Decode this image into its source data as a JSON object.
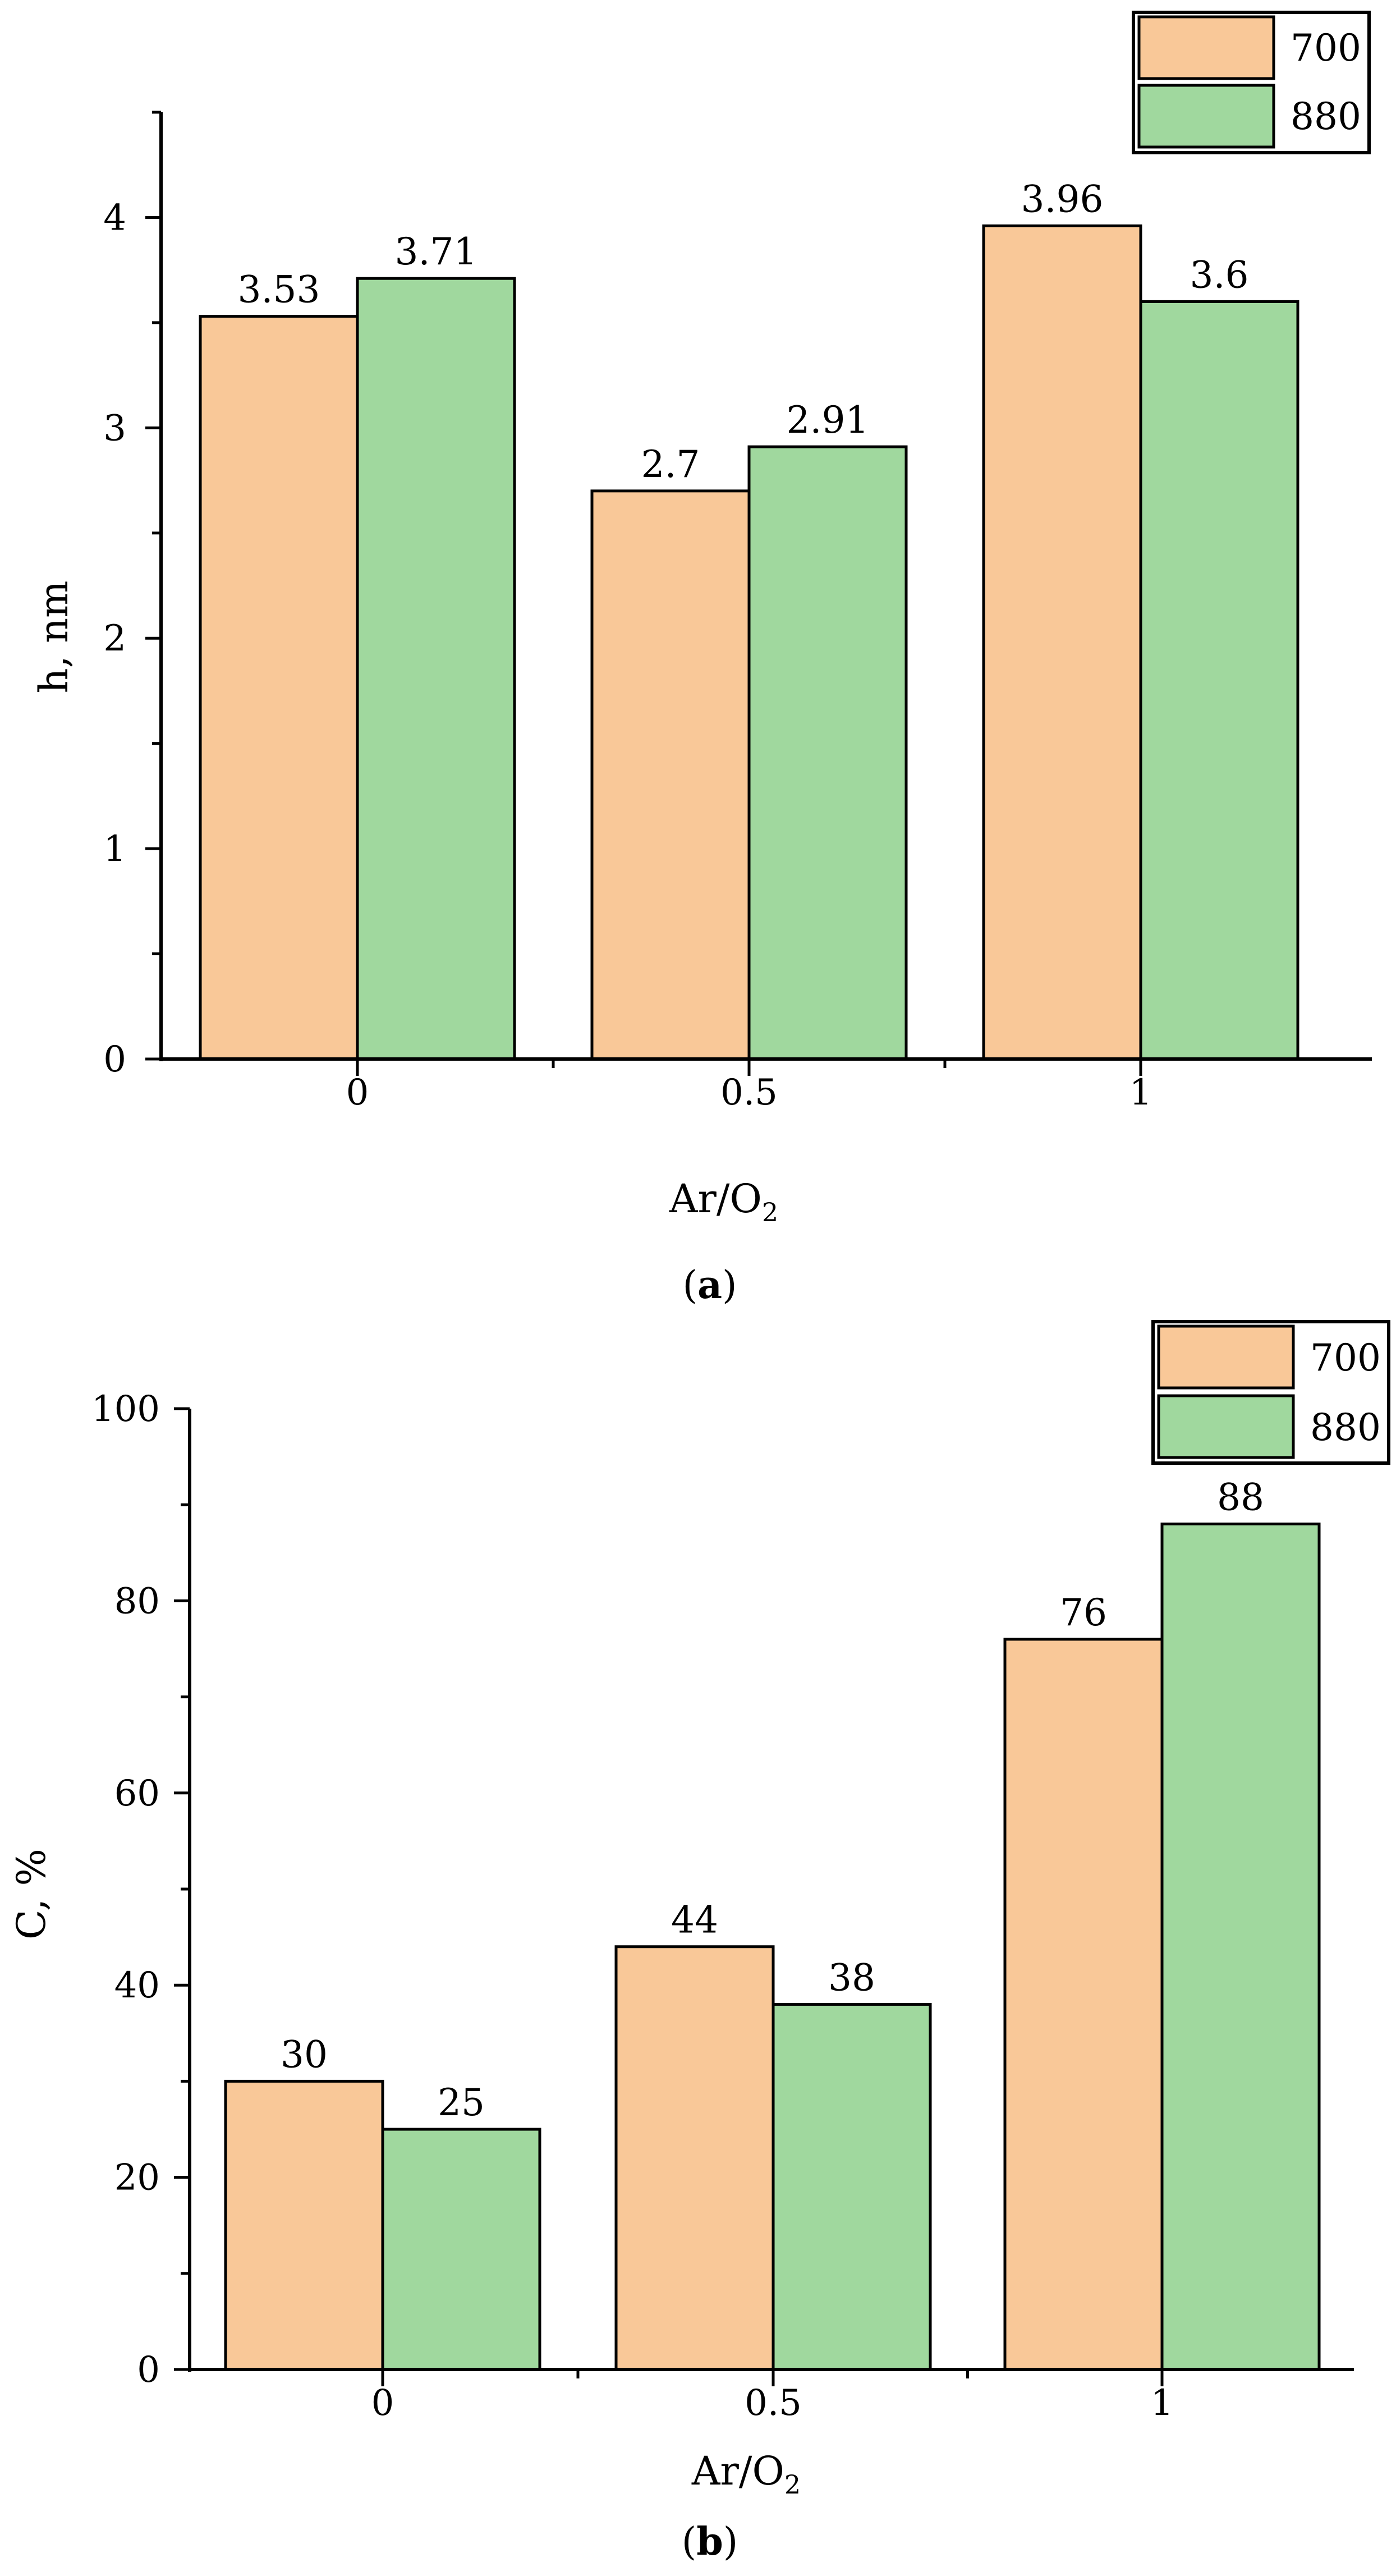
{
  "colors": {
    "series_700": "#F9C898",
    "series_880": "#A0D89E",
    "stroke": "#000000"
  },
  "chart_data": [
    {
      "type": "bar",
      "panel_label": "a",
      "categories": [
        "0",
        "0.5",
        "1"
      ],
      "series": [
        {
          "name": "700",
          "values": [
            3.53,
            2.7,
            3.96
          ]
        },
        {
          "name": "880",
          "values": [
            3.71,
            2.91,
            3.6
          ]
        }
      ],
      "value_labels": [
        [
          "3.53",
          "2.7",
          "3.96"
        ],
        [
          "3.71",
          "2.91",
          "3.6"
        ]
      ],
      "xlabel_main": "Ar/O",
      "xlabel_sub": "2",
      "ylabel": "h, nm",
      "ylim": [
        0,
        4.5
      ],
      "yticks": [
        0,
        1,
        2,
        3,
        4
      ],
      "ytick_labels": [
        "0",
        "1",
        "2",
        "3",
        "4"
      ],
      "ytick_minor": 0.5,
      "legend_position": "top-right"
    },
    {
      "type": "bar",
      "panel_label": "b",
      "categories": [
        "0",
        "0.5",
        "1"
      ],
      "series": [
        {
          "name": "700",
          "values": [
            30,
            44,
            76
          ]
        },
        {
          "name": "880",
          "values": [
            25,
            38,
            88
          ]
        }
      ],
      "value_labels": [
        [
          "30",
          "44",
          "76"
        ],
        [
          "25",
          "38",
          "88"
        ]
      ],
      "xlabel_main": "Ar/O",
      "xlabel_sub": "2",
      "ylabel": "C, %",
      "ylim": [
        0,
        100
      ],
      "yticks": [
        0,
        20,
        40,
        60,
        80,
        100
      ],
      "ytick_labels": [
        "0",
        "20",
        "40",
        "60",
        "80",
        "100"
      ],
      "ytick_minor": 10,
      "legend_position": "top-right"
    }
  ]
}
